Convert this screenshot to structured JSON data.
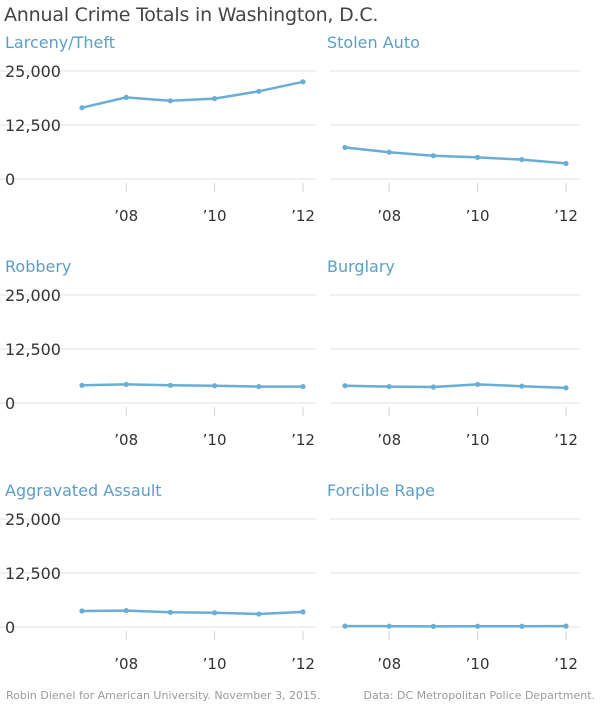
{
  "title": "Annual Crime Totals in Washington, D.C.",
  "footer": {
    "credit": "Robin Dienel for American University. November 3, 2015.",
    "source": "Data: DC Metropolitan Police Department."
  },
  "colors": {
    "line": "#6aaed6",
    "panel_title": "#5b9ec8",
    "grid": "#e2e2e2"
  },
  "chart_data": [
    {
      "type": "line",
      "title": "Larceny/Theft",
      "x": [
        2007,
        2008,
        2009,
        2010,
        2011,
        2012
      ],
      "series": [
        {
          "values": [
            16500,
            18900,
            18100,
            18600,
            20300,
            22500
          ]
        }
      ],
      "ylim": [
        0,
        25000
      ],
      "yticks": [
        "25,000",
        "12,500",
        "0"
      ],
      "xticks": [
        "’08",
        "’10",
        "’12"
      ],
      "grid": true
    },
    {
      "type": "line",
      "title": "Stolen Auto",
      "x": [
        2007,
        2008,
        2009,
        2010,
        2011,
        2012
      ],
      "series": [
        {
          "values": [
            7300,
            6200,
            5400,
            5000,
            4500,
            3600
          ]
        }
      ],
      "ylim": [
        0,
        25000
      ],
      "xticks": [
        "’08",
        "’10",
        "’12"
      ],
      "grid": true
    },
    {
      "type": "line",
      "title": "Robbery",
      "x": [
        2007,
        2008,
        2009,
        2010,
        2011,
        2012
      ],
      "series": [
        {
          "values": [
            4100,
            4300,
            4100,
            4000,
            3800,
            3800
          ]
        }
      ],
      "ylim": [
        0,
        25000
      ],
      "yticks": [
        "25,000",
        "12,500",
        "0"
      ],
      "xticks": [
        "’08",
        "’10",
        "’12"
      ],
      "grid": true
    },
    {
      "type": "line",
      "title": "Burglary",
      "x": [
        2007,
        2008,
        2009,
        2010,
        2011,
        2012
      ],
      "series": [
        {
          "values": [
            4000,
            3800,
            3700,
            4300,
            3900,
            3500
          ]
        }
      ],
      "ylim": [
        0,
        25000
      ],
      "xticks": [
        "’08",
        "’10",
        "’12"
      ],
      "grid": true
    },
    {
      "type": "line",
      "title": "Aggravated Assault",
      "x": [
        2007,
        2008,
        2009,
        2010,
        2011,
        2012
      ],
      "series": [
        {
          "values": [
            3700,
            3800,
            3400,
            3300,
            3000,
            3500
          ]
        }
      ],
      "ylim": [
        0,
        25000
      ],
      "yticks": [
        "25,000",
        "12,500",
        "0"
      ],
      "xticks": [
        "’08",
        "’10",
        "’12"
      ],
      "grid": true
    },
    {
      "type": "line",
      "title": "Forcible Rape",
      "x": [
        2007,
        2008,
        2009,
        2010,
        2011,
        2012
      ],
      "series": [
        {
          "values": [
            200,
            180,
            150,
            170,
            170,
            200
          ]
        }
      ],
      "ylim": [
        0,
        25000
      ],
      "xticks": [
        "’08",
        "’10",
        "’12"
      ],
      "grid": true
    }
  ]
}
